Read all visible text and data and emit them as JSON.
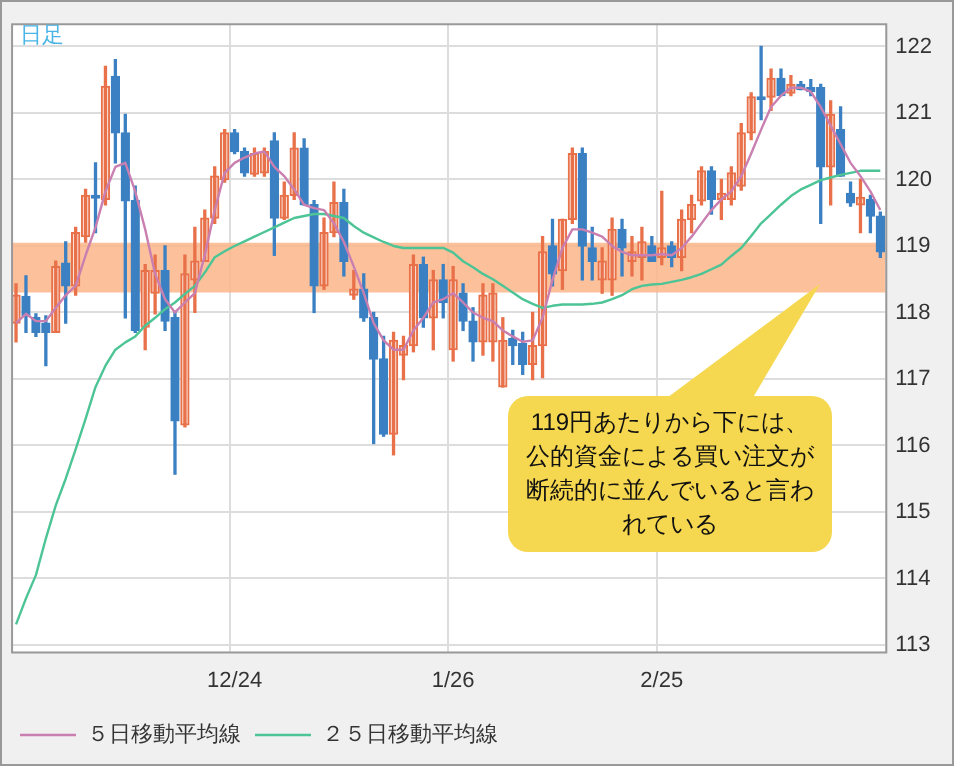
{
  "chart_data": {
    "type": "candlestick",
    "subtitle": "日足",
    "categories": [
      null,
      null,
      null,
      null,
      null,
      null,
      null,
      null,
      null,
      null,
      null,
      null,
      null,
      null,
      null,
      null,
      null,
      null,
      null,
      null,
      null,
      null,
      "12/24",
      null,
      null,
      null,
      null,
      null,
      null,
      null,
      null,
      null,
      null,
      null,
      null,
      null,
      null,
      null,
      null,
      null,
      null,
      null,
      null,
      null,
      "1/26",
      null,
      null,
      null,
      null,
      null,
      null,
      null,
      null,
      null,
      null,
      null,
      null,
      null,
      null,
      null,
      null,
      null,
      null,
      null,
      null,
      "2/25",
      null,
      null,
      null,
      null,
      null,
      null,
      null,
      null,
      null,
      null,
      null,
      null,
      null,
      null,
      null,
      null,
      null,
      null,
      null,
      null,
      null,
      null
    ],
    "ohlc": [
      [
        117.84,
        118.43,
        117.56,
        118.26
      ],
      [
        118.24,
        118.55,
        117.7,
        117.95
      ],
      [
        117.92,
        117.98,
        117.64,
        117.7
      ],
      [
        117.84,
        117.95,
        117.2,
        117.7
      ],
      [
        117.7,
        118.77,
        117.7,
        118.69
      ],
      [
        118.74,
        119.06,
        117.84,
        118.4
      ],
      [
        118.4,
        119.28,
        118.26,
        119.2
      ],
      [
        119.14,
        119.85,
        119.06,
        119.76
      ],
      [
        119.76,
        120.25,
        119.2,
        119.72
      ],
      [
        119.7,
        121.7,
        119.62,
        121.4
      ],
      [
        121.55,
        121.8,
        120.25,
        120.7
      ],
      [
        120.7,
        120.98,
        117.92,
        119.68
      ],
      [
        119.68,
        119.9,
        117.7,
        117.73
      ],
      [
        117.78,
        118.72,
        117.44,
        118.63
      ],
      [
        118.29,
        118.86,
        117.98,
        118.63
      ],
      [
        118.63,
        119.0,
        117.73,
        117.87
      ],
      [
        117.92,
        118.0,
        115.57,
        116.37
      ],
      [
        116.31,
        118.86,
        116.28,
        118.58
      ],
      [
        118.49,
        119.28,
        118.0,
        118.77
      ],
      [
        118.77,
        119.54,
        118.77,
        119.42
      ],
      [
        119.42,
        120.19,
        119.34,
        120.05
      ],
      [
        120.0,
        120.75,
        119.96,
        120.7
      ],
      [
        120.7,
        120.75,
        120.39,
        120.42
      ],
      [
        120.42,
        120.47,
        120.05,
        120.1
      ],
      [
        120.08,
        120.47,
        120.05,
        120.39
      ],
      [
        120.1,
        120.47,
        120.05,
        120.42
      ],
      [
        120.58,
        120.7,
        118.86,
        119.42
      ],
      [
        119.42,
        119.96,
        119.4,
        119.76
      ],
      [
        119.76,
        120.7,
        119.7,
        120.47
      ],
      [
        120.47,
        120.61,
        119.62,
        119.62
      ],
      [
        119.62,
        119.68,
        118.0,
        118.4
      ],
      [
        118.4,
        119.42,
        118.35,
        119.2
      ],
      [
        119.2,
        119.96,
        119.14,
        119.65
      ],
      [
        119.65,
        119.85,
        118.55,
        118.77
      ],
      [
        118.26,
        118.63,
        118.2,
        118.35
      ],
      [
        118.35,
        118.58,
        117.87,
        117.92
      ],
      [
        117.92,
        118.0,
        116.03,
        117.3
      ],
      [
        117.3,
        117.64,
        116.14,
        116.17
      ],
      [
        116.17,
        117.7,
        115.86,
        117.58
      ],
      [
        117.36,
        117.64,
        116.99,
        117.5
      ],
      [
        117.5,
        118.86,
        117.41,
        118.72
      ],
      [
        118.72,
        118.83,
        117.78,
        117.92
      ],
      [
        117.92,
        118.63,
        117.44,
        118.49
      ],
      [
        118.49,
        118.72,
        117.92,
        118.15
      ],
      [
        117.44,
        118.69,
        117.27,
        118.49
      ],
      [
        118.29,
        118.43,
        117.73,
        117.87
      ],
      [
        117.87,
        118.07,
        117.27,
        117.56
      ],
      [
        117.56,
        118.43,
        117.36,
        118.26
      ],
      [
        117.56,
        118.43,
        117.27,
        118.29
      ],
      [
        116.88,
        117.92,
        116.88,
        117.58
      ],
      [
        117.61,
        117.73,
        117.22,
        117.5
      ],
      [
        117.53,
        117.7,
        117.07,
        117.22
      ],
      [
        117.22,
        118.0,
        116.99,
        117.5
      ],
      [
        117.5,
        119.14,
        117.02,
        118.91
      ],
      [
        119.0,
        119.4,
        118.4,
        118.58
      ],
      [
        118.63,
        119.4,
        118.35,
        119.4
      ],
      [
        119.4,
        120.47,
        119.34,
        120.39
      ],
      [
        120.39,
        120.47,
        118.49,
        119.0
      ],
      [
        118.97,
        119.28,
        118.49,
        118.77
      ],
      [
        118.49,
        118.97,
        118.29,
        118.77
      ],
      [
        118.49,
        119.42,
        118.26,
        119.25
      ],
      [
        119.25,
        119.4,
        118.55,
        118.97
      ],
      [
        118.77,
        119.14,
        118.55,
        118.91
      ],
      [
        118.83,
        119.28,
        118.49,
        119.06
      ],
      [
        119.0,
        119.14,
        118.77,
        118.77
      ],
      [
        118.83,
        119.82,
        118.72,
        118.97
      ],
      [
        119.0,
        119.06,
        118.69,
        118.83
      ],
      [
        118.83,
        119.54,
        118.63,
        119.4
      ],
      [
        119.4,
        119.76,
        119.2,
        119.62
      ],
      [
        119.68,
        120.19,
        119.62,
        120.13
      ],
      [
        120.13,
        120.19,
        119.48,
        119.7
      ],
      [
        119.7,
        120.0,
        119.4,
        119.79
      ],
      [
        119.7,
        120.19,
        119.62,
        120.1
      ],
      [
        119.9,
        120.84,
        119.84,
        120.7
      ],
      [
        120.7,
        121.3,
        120.6,
        121.24
      ],
      [
        121.24,
        122.0,
        120.9,
        121.2
      ],
      [
        121.24,
        121.66,
        121.04,
        121.52
      ],
      [
        121.52,
        121.66,
        121.26,
        121.26
      ],
      [
        121.3,
        121.56,
        121.26,
        121.43
      ],
      [
        121.43,
        121.47,
        121.35,
        121.35
      ],
      [
        121.38,
        121.5,
        121.26,
        121.32
      ],
      [
        121.38,
        121.43,
        119.34,
        120.19
      ],
      [
        120.19,
        121.18,
        119.62,
        120.98
      ],
      [
        120.75,
        121.09,
        120.05,
        120.05
      ],
      [
        119.79,
        119.96,
        119.6,
        119.65
      ],
      [
        119.62,
        120.0,
        119.2,
        119.73
      ],
      [
        119.7,
        119.76,
        119.2,
        119.45
      ],
      [
        119.45,
        119.51,
        118.83,
        118.91
      ]
    ],
    "colors": [
      "#e8714a",
      "#3b80c2",
      "#3b80c2",
      "#3b80c2",
      "#e8714a",
      "#3b80c2",
      "#e8714a",
      "#e8714a",
      "#3b80c2",
      "#e8714a",
      "#3b80c2",
      "#3b80c2",
      "#3b80c2",
      "#e8714a",
      "#e8714a",
      "#3b80c2",
      "#3b80c2",
      "#e8714a",
      "#e8714a",
      "#e8714a",
      "#e8714a",
      "#e8714a",
      "#3b80c2",
      "#3b80c2",
      "#e8714a",
      "#e8714a",
      "#3b80c2",
      "#e8714a",
      "#e8714a",
      "#3b80c2",
      "#3b80c2",
      "#e8714a",
      "#e8714a",
      "#3b80c2",
      "#e8714a",
      "#3b80c2",
      "#3b80c2",
      "#3b80c2",
      "#e8714a",
      "#e8714a",
      "#e8714a",
      "#3b80c2",
      "#e8714a",
      "#3b80c2",
      "#e8714a",
      "#3b80c2",
      "#3b80c2",
      "#e8714a",
      "#e8714a",
      "#e8714a",
      "#3b80c2",
      "#3b80c2",
      "#e8714a",
      "#e8714a",
      "#3b80c2",
      "#e8714a",
      "#e8714a",
      "#3b80c2",
      "#3b80c2",
      "#e8714a",
      "#e8714a",
      "#3b80c2",
      "#e8714a",
      "#e8714a",
      "#3b80c2",
      "#e8714a",
      "#3b80c2",
      "#e8714a",
      "#e8714a",
      "#e8714a",
      "#3b80c2",
      "#e8714a",
      "#e8714a",
      "#e8714a",
      "#e8714a",
      "#3b80c2",
      "#e8714a",
      "#3b80c2",
      "#e8714a",
      "#3b80c2",
      "#3b80c2",
      "#3b80c2",
      "#e8714a",
      "#3b80c2",
      "#3b80c2",
      "#e8714a",
      "#3b80c2",
      "#3b80c2"
    ],
    "series": [
      {
        "type": "line",
        "name": "５日移動平均線",
        "color": "#c97fb0",
        "values": [
          117.84,
          117.98,
          117.87,
          117.87,
          118.07,
          118.26,
          118.4,
          118.86,
          119.28,
          119.82,
          120.19,
          120.25,
          119.82,
          119.25,
          118.58,
          118.2,
          118.0,
          118.15,
          118.29,
          118.86,
          119.54,
          120.1,
          120.25,
          120.33,
          120.39,
          120.42,
          120.19,
          120.05,
          119.85,
          119.62,
          119.57,
          119.54,
          119.34,
          119.06,
          118.69,
          118.29,
          117.84,
          117.58,
          117.44,
          117.44,
          117.73,
          117.92,
          118.15,
          118.2,
          118.29,
          118.15,
          118.0,
          117.92,
          117.87,
          117.73,
          117.64,
          117.56,
          117.58,
          117.92,
          118.49,
          118.97,
          119.25,
          119.25,
          119.2,
          119.14,
          119.0,
          118.91,
          118.86,
          118.86,
          118.86,
          118.88,
          118.86,
          118.97,
          119.14,
          119.34,
          119.54,
          119.7,
          119.82,
          120.05,
          120.39,
          120.75,
          121.09,
          121.26,
          121.38,
          121.38,
          121.32,
          121.09,
          120.81,
          120.53,
          120.25,
          120.05,
          119.82,
          119.54
        ]
      },
      {
        "type": "line",
        "name": "２５日移動平均線",
        "color": "#4cc495",
        "values": [
          113.31,
          113.7,
          114.05,
          114.6,
          115.1,
          115.5,
          115.94,
          116.4,
          116.88,
          117.2,
          117.44,
          117.55,
          117.64,
          117.8,
          117.92,
          118.05,
          118.15,
          118.28,
          118.4,
          118.6,
          118.83,
          118.92,
          119.0,
          119.07,
          119.14,
          119.21,
          119.28,
          119.35,
          119.42,
          119.45,
          119.48,
          119.48,
          119.45,
          119.42,
          119.3,
          119.2,
          119.13,
          119.06,
          119.0,
          118.97,
          118.97,
          118.97,
          118.97,
          118.97,
          118.9,
          118.77,
          118.68,
          118.58,
          118.5,
          118.4,
          118.3,
          118.2,
          118.13,
          118.07,
          118.1,
          118.12,
          118.12,
          118.12,
          118.13,
          118.15,
          118.2,
          118.26,
          118.35,
          118.4,
          118.42,
          118.43,
          118.46,
          118.49,
          118.53,
          118.58,
          118.65,
          118.72,
          118.85,
          118.97,
          119.15,
          119.34,
          119.48,
          119.62,
          119.75,
          119.85,
          119.92,
          119.99,
          120.03,
          120.07,
          120.1,
          120.13,
          120.13,
          120.13
        ]
      }
    ],
    "ylim": [
      112.9,
      122.35
    ],
    "yticks": [
      113,
      114,
      115,
      116,
      117,
      118,
      119,
      120,
      121,
      122
    ],
    "bands": [
      {
        "axis": "y",
        "from": 118.3,
        "to": 119.05,
        "color": "#fbb58a"
      }
    ],
    "annotations": [
      "119円あたりから下には、公的資金による買い注文が断続的に並んでいると言われている"
    ],
    "grid": true,
    "legend": "bottom left"
  }
}
